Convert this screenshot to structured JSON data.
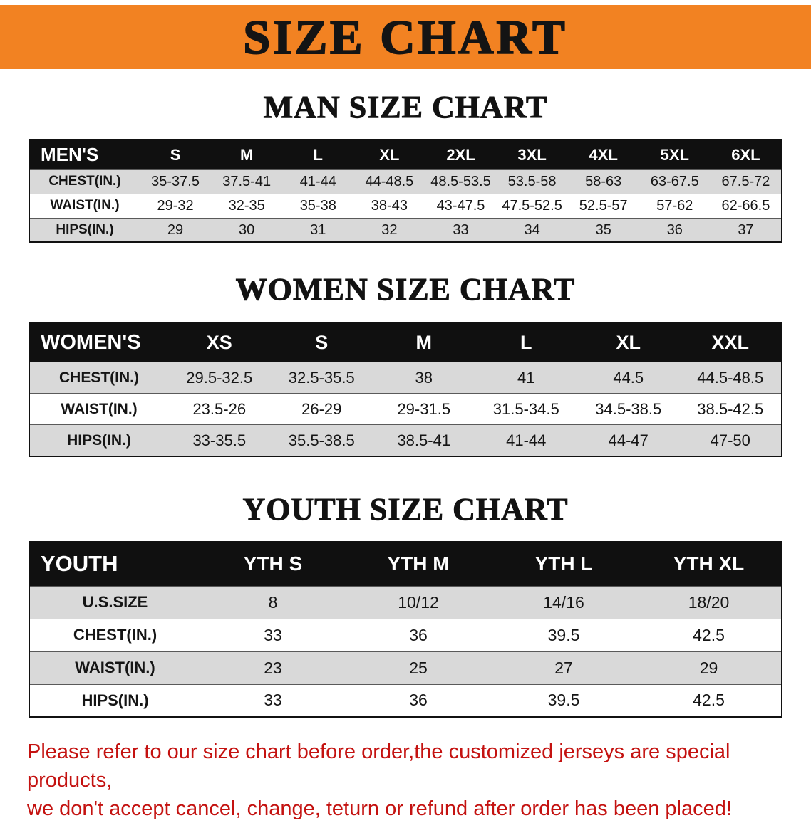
{
  "banner": {
    "title": "SIZE CHART",
    "bg_color": "#f28222",
    "text_color": "#141414"
  },
  "chart_data": [
    {
      "type": "table",
      "title": "MAN SIZE CHART",
      "columns": [
        "MEN'S",
        "S",
        "M",
        "L",
        "XL",
        "2XL",
        "3XL",
        "4XL",
        "5XL",
        "6XL"
      ],
      "rows": [
        [
          "CHEST(IN.)",
          "35-37.5",
          "37.5-41",
          "41-44",
          "44-48.5",
          "48.5-53.5",
          "53.5-58",
          "58-63",
          "63-67.5",
          "67.5-72"
        ],
        [
          "WAIST(IN.)",
          "29-32",
          "32-35",
          "35-38",
          "38-43",
          "43-47.5",
          "47.5-52.5",
          "52.5-57",
          "57-62",
          "62-66.5"
        ],
        [
          "HIPS(IN.)",
          "29",
          "30",
          "31",
          "32",
          "33",
          "34",
          "35",
          "36",
          "37"
        ]
      ]
    },
    {
      "type": "table",
      "title": "WOMEN SIZE CHART",
      "columns": [
        "WOMEN'S",
        "XS",
        "S",
        "M",
        "L",
        "XL",
        "XXL"
      ],
      "rows": [
        [
          "CHEST(IN.)",
          "29.5-32.5",
          "32.5-35.5",
          "38",
          "41",
          "44.5",
          "44.5-48.5"
        ],
        [
          "WAIST(IN.)",
          "23.5-26",
          "26-29",
          "29-31.5",
          "31.5-34.5",
          "34.5-38.5",
          "38.5-42.5"
        ],
        [
          "HIPS(IN.)",
          "33-35.5",
          "35.5-38.5",
          "38.5-41",
          "41-44",
          "44-47",
          "47-50"
        ]
      ]
    },
    {
      "type": "table",
      "title": "YOUTH SIZE CHART",
      "columns": [
        "YOUTH",
        "YTH S",
        "YTH M",
        "YTH L",
        "YTH XL"
      ],
      "rows": [
        [
          "U.S.SIZE",
          "8",
          "10/12",
          "14/16",
          "18/20"
        ],
        [
          "CHEST(IN.)",
          "33",
          "36",
          "39.5",
          "42.5"
        ],
        [
          "WAIST(IN.)",
          "23",
          "25",
          "27",
          "29"
        ],
        [
          "HIPS(IN.)",
          "33",
          "36",
          "39.5",
          "42.5"
        ]
      ]
    }
  ],
  "footer": {
    "color": "#c41210",
    "lines": [
      "Please refer to our size chart before order,the customized jerseys are special products,",
      "we don't accept cancel, change, teturn or refund after order has been placed!"
    ]
  }
}
